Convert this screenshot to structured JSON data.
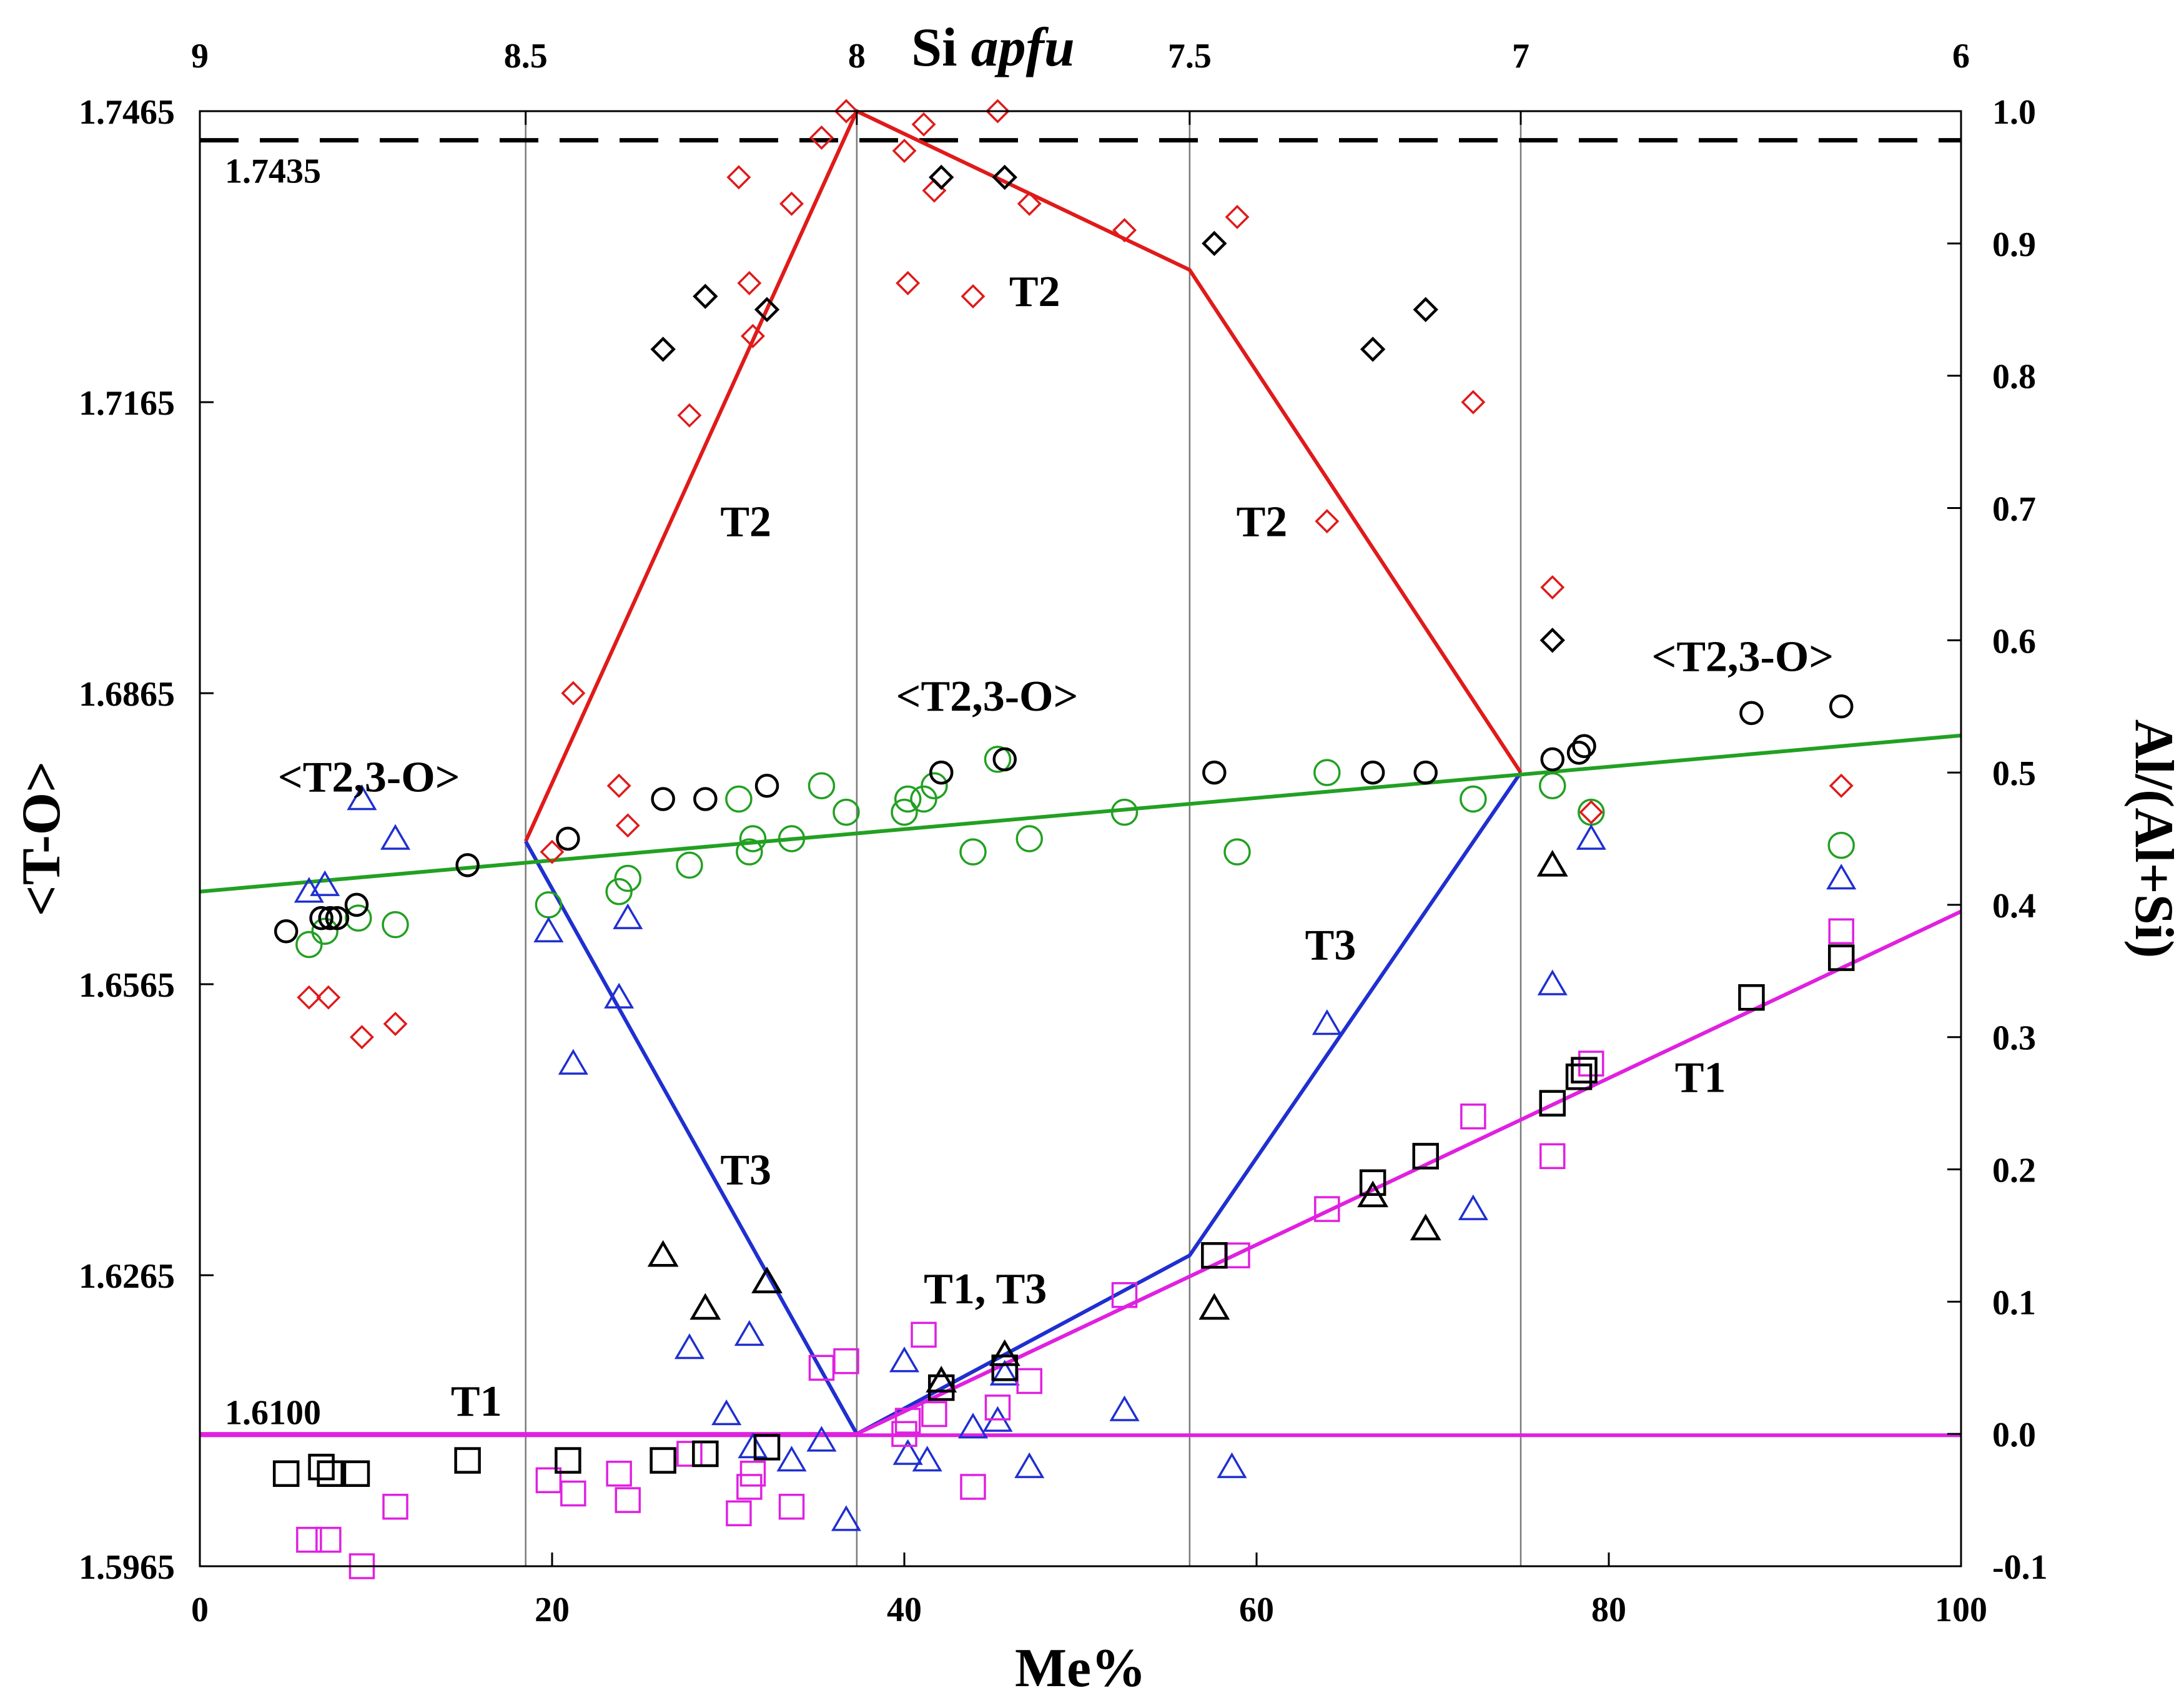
{
  "chart_data": {
    "type": "scatter",
    "title": "",
    "xlabel": "Me%",
    "xlim": [
      0,
      100
    ],
    "x_ticks": [
      0,
      20,
      40,
      60,
      80,
      100
    ],
    "top_axis": {
      "label_main": "Si",
      "label_italic": "apfu",
      "ticks": [
        {
          "x": 0,
          "label": "9"
        },
        {
          "x": 18.5,
          "label": "8.5"
        },
        {
          "x": 37.3,
          "label": "8"
        },
        {
          "x": 56.2,
          "label": "7.5"
        },
        {
          "x": 75,
          "label": "7"
        },
        {
          "x": 100,
          "label": "6"
        }
      ]
    },
    "ylabel_left": "<T-O>",
    "ylim_left": [
      1.5965,
      1.7465
    ],
    "y_ticks_left": [
      "1.5965",
      "1.6265",
      "1.6565",
      "1.6865",
      "1.7165",
      "1.7465"
    ],
    "ylabel_right": "Al/(Al+Si)",
    "ylim_right": [
      -0.1,
      1.0
    ],
    "y_ticks_right": [
      "-0.1",
      "0.0",
      "0.1",
      "0.2",
      "0.3",
      "0.4",
      "0.5",
      "0.6",
      "0.7",
      "0.8",
      "0.9",
      "1.0"
    ],
    "vertical_gridlines_x": [
      18.5,
      37.3,
      56.2,
      75
    ],
    "reference_lines": [
      {
        "y": 1.7435,
        "label": "1.7435",
        "style": "dashed",
        "color": "#000000"
      },
      {
        "y": 1.61,
        "label": "1.6100",
        "style": "solid",
        "color": "#e020e0"
      }
    ],
    "trend_lines": [
      {
        "name": "T2",
        "color": "#e01a1a",
        "points": [
          [
            18.5,
            0.448
          ],
          [
            37.3,
            1.0
          ],
          [
            56.2,
            0.88
          ],
          [
            75,
            0.5
          ]
        ]
      },
      {
        "name": "T3",
        "color": "#1f2fd0",
        "points": [
          [
            18.5,
            0.448
          ],
          [
            37.3,
            0.0
          ],
          [
            56.2,
            0.135
          ],
          [
            75,
            0.5
          ]
        ]
      },
      {
        "name": "T1",
        "color": "#e020e0",
        "points": [
          [
            0,
            0.0
          ],
          [
            37.3,
            0.0
          ],
          [
            100,
            0.395
          ]
        ]
      },
      {
        "name": "<T2,3-O>",
        "color": "#22a022",
        "points": [
          [
            0,
            0.41
          ],
          [
            100,
            0.528
          ]
        ]
      }
    ],
    "series": [
      {
        "name": "T2 (red diamonds)",
        "marker": "diamond",
        "color": "#e01a1a",
        "points": [
          [
            6.2,
            0.33
          ],
          [
            7.3,
            0.33
          ],
          [
            9.2,
            0.3
          ],
          [
            11.1,
            0.31
          ],
          [
            20,
            0.44
          ],
          [
            21.2,
            0.56
          ],
          [
            23.8,
            0.49
          ],
          [
            24.3,
            0.46
          ],
          [
            27.8,
            0.77
          ],
          [
            30.6,
            0.95
          ],
          [
            31.2,
            0.87
          ],
          [
            31.4,
            0.83
          ],
          [
            33.6,
            0.93
          ],
          [
            35.3,
            0.98
          ],
          [
            36.7,
            1.0
          ],
          [
            40.0,
            0.97
          ],
          [
            40.2,
            0.87
          ],
          [
            41.1,
            0.99
          ],
          [
            41.7,
            0.94
          ],
          [
            43.9,
            0.86
          ],
          [
            45.3,
            1.0
          ],
          [
            47.1,
            0.93
          ],
          [
            52.5,
            0.91
          ],
          [
            58.9,
            0.92
          ],
          [
            64.0,
            0.69
          ],
          [
            72.3,
            0.78
          ],
          [
            76.8,
            0.64
          ],
          [
            79.0,
            0.47
          ],
          [
            93.2,
            0.49
          ]
        ]
      },
      {
        "name": "T2 (black diamonds)",
        "marker": "diamond",
        "color": "#000000",
        "points": [
          [
            26.3,
            0.82
          ],
          [
            28.7,
            0.86
          ],
          [
            32.2,
            0.85
          ],
          [
            42.1,
            0.95
          ],
          [
            45.7,
            0.95
          ],
          [
            57.6,
            0.9
          ],
          [
            66.6,
            0.82
          ],
          [
            69.6,
            0.85
          ],
          [
            76.8,
            0.6
          ]
        ]
      },
      {
        "name": "<T2,3-O> (green circles)",
        "marker": "circle",
        "color": "#22a022",
        "points": [
          [
            6.2,
            0.37
          ],
          [
            7.1,
            0.38
          ],
          [
            9.0,
            0.39
          ],
          [
            11.1,
            0.385
          ],
          [
            19.8,
            0.4
          ],
          [
            23.8,
            0.41
          ],
          [
            24.3,
            0.42
          ],
          [
            27.8,
            0.43
          ],
          [
            30.6,
            0.48
          ],
          [
            31.2,
            0.44
          ],
          [
            31.4,
            0.45
          ],
          [
            33.6,
            0.45
          ],
          [
            35.3,
            0.49
          ],
          [
            36.7,
            0.47
          ],
          [
            40.0,
            0.47
          ],
          [
            40.2,
            0.48
          ],
          [
            41.1,
            0.48
          ],
          [
            41.7,
            0.49
          ],
          [
            43.9,
            0.44
          ],
          [
            45.3,
            0.51
          ],
          [
            47.1,
            0.45
          ],
          [
            52.5,
            0.47
          ],
          [
            58.9,
            0.44
          ],
          [
            64.0,
            0.5
          ],
          [
            72.3,
            0.48
          ],
          [
            76.8,
            0.49
          ],
          [
            79.0,
            0.47
          ],
          [
            93.2,
            0.445
          ]
        ]
      },
      {
        "name": "<T2,3-O> (black circles)",
        "marker": "circle",
        "color": "#000000",
        "points": [
          [
            4.9,
            0.38
          ],
          [
            6.9,
            0.39
          ],
          [
            7.4,
            0.39
          ],
          [
            7.8,
            0.39
          ],
          [
            8.9,
            0.4
          ],
          [
            15.2,
            0.43
          ],
          [
            20.9,
            0.45
          ],
          [
            26.3,
            0.48
          ],
          [
            28.7,
            0.48
          ],
          [
            32.2,
            0.49
          ],
          [
            42.1,
            0.5
          ],
          [
            45.7,
            0.51
          ],
          [
            57.6,
            0.5
          ],
          [
            66.6,
            0.5
          ],
          [
            69.6,
            0.5
          ],
          [
            76.8,
            0.51
          ],
          [
            78.3,
            0.515
          ],
          [
            78.6,
            0.52
          ],
          [
            88.1,
            0.545
          ],
          [
            93.2,
            0.55
          ]
        ]
      },
      {
        "name": "T3 (blue triangles)",
        "marker": "triangle",
        "color": "#1f2fd0",
        "points": [
          [
            6.2,
            0.41
          ],
          [
            7.1,
            0.415
          ],
          [
            9.2,
            0.48
          ],
          [
            11.1,
            0.45
          ],
          [
            19.8,
            0.38
          ],
          [
            21.2,
            0.28
          ],
          [
            23.8,
            0.33
          ],
          [
            24.3,
            0.39
          ],
          [
            27.8,
            0.065
          ],
          [
            29.9,
            0.015
          ],
          [
            31.2,
            0.075
          ],
          [
            31.4,
            -0.01
          ],
          [
            33.6,
            -0.02
          ],
          [
            35.3,
            -0.005
          ],
          [
            36.7,
            -0.065
          ],
          [
            40.0,
            0.055
          ],
          [
            40.2,
            -0.015
          ],
          [
            41.3,
            -0.02
          ],
          [
            43.9,
            0.005
          ],
          [
            45.3,
            0.01
          ],
          [
            45.7,
            0.045
          ],
          [
            47.1,
            -0.025
          ],
          [
            52.5,
            0.018
          ],
          [
            58.6,
            -0.025
          ],
          [
            64.0,
            0.31
          ],
          [
            72.3,
            0.17
          ],
          [
            76.8,
            0.34
          ],
          [
            79.0,
            0.45
          ],
          [
            93.2,
            0.42
          ]
        ]
      },
      {
        "name": "T3 (black triangles)",
        "marker": "triangle",
        "color": "#000000",
        "points": [
          [
            26.3,
            0.135
          ],
          [
            28.7,
            0.095
          ],
          [
            32.2,
            0.115
          ],
          [
            42.1,
            0.04
          ],
          [
            45.7,
            0.06
          ],
          [
            57.6,
            0.095
          ],
          [
            66.6,
            0.18
          ],
          [
            69.6,
            0.155
          ],
          [
            76.8,
            0.43
          ]
        ]
      },
      {
        "name": "T1 (magenta squares)",
        "marker": "square",
        "color": "#e020e0",
        "points": [
          [
            6.2,
            -0.08
          ],
          [
            7.3,
            -0.08
          ],
          [
            9.2,
            -0.1
          ],
          [
            11.1,
            -0.055
          ],
          [
            19.8,
            -0.035
          ],
          [
            21.2,
            -0.045
          ],
          [
            23.8,
            -0.03
          ],
          [
            24.3,
            -0.05
          ],
          [
            27.8,
            -0.015
          ],
          [
            30.6,
            -0.06
          ],
          [
            31.2,
            -0.04
          ],
          [
            31.4,
            -0.03
          ],
          [
            33.6,
            -0.055
          ],
          [
            35.3,
            0.05
          ],
          [
            36.7,
            0.055
          ],
          [
            40.0,
            0.0
          ],
          [
            40.2,
            0.01
          ],
          [
            41.1,
            0.075
          ],
          [
            41.7,
            0.015
          ],
          [
            43.9,
            -0.04
          ],
          [
            45.3,
            0.02
          ],
          [
            47.1,
            0.04
          ],
          [
            52.5,
            0.105
          ],
          [
            58.9,
            0.135
          ],
          [
            64.0,
            0.17
          ],
          [
            72.3,
            0.24
          ],
          [
            76.8,
            0.21
          ],
          [
            79.0,
            0.28
          ],
          [
            93.2,
            0.38
          ]
        ]
      },
      {
        "name": "T1 (black squares)",
        "marker": "square",
        "color": "#000000",
        "points": [
          [
            4.9,
            -0.03
          ],
          [
            6.9,
            -0.025
          ],
          [
            7.4,
            -0.03
          ],
          [
            8.9,
            -0.03
          ],
          [
            15.2,
            -0.02
          ],
          [
            20.9,
            -0.02
          ],
          [
            26.3,
            -0.02
          ],
          [
            28.7,
            -0.015
          ],
          [
            32.2,
            -0.01
          ],
          [
            42.1,
            0.035
          ],
          [
            45.7,
            0.05
          ],
          [
            57.6,
            0.135
          ],
          [
            66.6,
            0.19
          ],
          [
            69.6,
            0.21
          ],
          [
            76.8,
            0.25
          ],
          [
            78.3,
            0.27
          ],
          [
            78.6,
            0.275
          ],
          [
            88.1,
            0.33
          ],
          [
            93.2,
            0.36
          ]
        ]
      }
    ],
    "annotations": [
      {
        "text": "T2",
        "x": 31,
        "y": 0.69
      },
      {
        "text": "T2",
        "x": 47.4,
        "y": 0.864
      },
      {
        "text": "T2",
        "x": 60.3,
        "y": 0.69
      },
      {
        "text": "T3",
        "x": 31,
        "y": 0.2
      },
      {
        "text": "T3",
        "x": 64.2,
        "y": 0.37
      },
      {
        "text": "T1",
        "x": 15.7,
        "y": 0.025
      },
      {
        "text": "T1",
        "x": 85.2,
        "y": 0.27
      },
      {
        "text": "T1, T3",
        "x": 44.6,
        "y": 0.11
      },
      {
        "text": "<T2,3-O>",
        "x": 9.6,
        "y": 0.497
      },
      {
        "text": "<T2,3-O>",
        "x": 44.7,
        "y": 0.558
      },
      {
        "text": "<T2,3-O>",
        "x": 87.6,
        "y": 0.588
      }
    ]
  }
}
